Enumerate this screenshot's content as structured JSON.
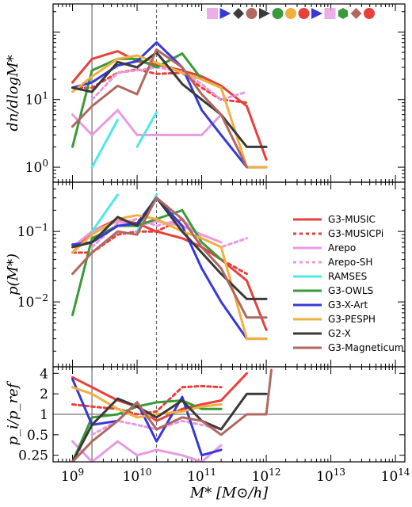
{
  "colors": {
    "G3-MUSIC": "#e8403c",
    "G3-MUSICPi": "#e8403c",
    "Arepo": "#e89ae0",
    "Arepo-SH": "#e89ae0",
    "RAMSES": "#4ee8e8",
    "G3-OWLS": "#3a9a3a",
    "G3-X-Art": "#3838d8",
    "G3-PESPH": "#f0b040",
    "G2-X": "#3a3a3a",
    "G3-Magneticum": "#b06860",
    "ref_lines": "#555555"
  },
  "chart_data": [
    {
      "type": "line",
      "panel": "top",
      "ylabel": "dn/dlogM*",
      "yscale": "log",
      "ylim": [
        0.6,
        260
      ],
      "xlim": [
        500000000.0,
        140000000000000.0
      ],
      "ytick_labels": [
        "10^0",
        "10^1"
      ],
      "reference_lines": {
        "solid_x": 2000000000.0,
        "dashed_x": 20000000000.0
      },
      "series": [
        {
          "name": "G3-MUSIC",
          "style": "solid",
          "x": [
            1000000000.0,
            2000000000.0,
            5000000000.0,
            10000000000.0,
            20000000000.0,
            50000000000.0,
            100000000000.0,
            200000000000.0,
            500000000000.0,
            1000000000000.0
          ],
          "y": [
            18,
            40,
            52,
            37,
            33,
            27,
            22,
            16,
            8,
            1.3
          ]
        },
        {
          "name": "G3-MUSICPi",
          "style": "dashed",
          "x": [
            1000000000.0,
            2000000000.0,
            5000000000.0,
            10000000000.0,
            20000000000.0,
            50000000000.0,
            100000000000.0,
            200000000000.0,
            500000000000.0
          ],
          "y": [
            15,
            15,
            25,
            28,
            24,
            25,
            15,
            10,
            9
          ]
        },
        {
          "name": "Arepo",
          "style": "solid",
          "x": [
            1000000000.0,
            2000000000.0,
            5000000000.0,
            10000000000.0,
            20000000000.0,
            50000000000.0,
            100000000000.0,
            200000000000.0
          ],
          "y": [
            6,
            3,
            7,
            3,
            3,
            3,
            3,
            6
          ]
        },
        {
          "name": "Arepo-SH",
          "style": "dashed",
          "x": [
            2000000000.0,
            5000000000.0,
            10000000000.0,
            20000000000.0,
            50000000000.0,
            100000000000.0,
            200000000000.0,
            500000000000.0
          ],
          "y": [
            10,
            25,
            27,
            30,
            26,
            17,
            10,
            13
          ]
        },
        {
          "name": "RAMSES",
          "style": "solid",
          "segments": [
            {
              "x": [
                2000000000.0,
                5000000000.0
              ],
              "y": [
                1,
                5
              ]
            },
            {
              "x": [
                10000000000.0,
                20000000000.0
              ],
              "y": [
                2,
                6.5
              ]
            }
          ]
        },
        {
          "name": "G3-OWLS",
          "style": "solid",
          "x": [
            1000000000.0,
            2000000000.0,
            5000000000.0,
            10000000000.0,
            20000000000.0,
            50000000000.0,
            100000000000.0,
            200000000000.0
          ],
          "y": [
            2,
            27,
            40,
            40,
            30,
            48,
            20,
            15
          ]
        },
        {
          "name": "G3-X-Art",
          "style": "solid",
          "x": [
            1000000000.0,
            2000000000.0,
            5000000000.0,
            10000000000.0,
            20000000000.0,
            50000000000.0,
            100000000000.0,
            200000000000.0,
            500000000000.0,
            1000000000000.0
          ],
          "y": [
            15,
            18,
            32,
            37,
            70,
            30,
            7,
            3,
            1,
            1
          ]
        },
        {
          "name": "G3-PESPH",
          "style": "solid",
          "x": [
            1000000000.0,
            2000000000.0,
            5000000000.0,
            10000000000.0,
            20000000000.0,
            50000000000.0,
            100000000000.0,
            200000000000.0,
            500000000000.0,
            1000000000000.0
          ],
          "y": [
            13,
            22,
            40,
            45,
            35,
            25,
            20,
            15,
            1,
            1
          ]
        },
        {
          "name": "G2-X",
          "style": "solid",
          "x": [
            1000000000.0,
            2000000000.0,
            5000000000.0,
            10000000000.0,
            20000000000.0,
            50000000000.0,
            100000000000.0,
            200000000000.0,
            500000000000.0,
            1000000000000.0
          ],
          "y": [
            15,
            13,
            36,
            30,
            50,
            17,
            10,
            6,
            2,
            2
          ]
        },
        {
          "name": "G3-Magneticum",
          "style": "solid",
          "x": [
            1000000000.0,
            2000000000.0,
            5000000000.0,
            10000000000.0,
            20000000000.0,
            50000000000.0,
            100000000000.0,
            200000000000.0,
            500000000000.0
          ],
          "y": [
            4,
            8,
            16,
            12,
            55,
            30,
            12,
            6,
            1
          ]
        }
      ]
    },
    {
      "type": "line",
      "panel": "middle",
      "ylabel": "p(M*)",
      "yscale": "log",
      "ylim": [
        0.0012,
        0.5
      ],
      "xlim": [
        500000000.0,
        140000000000000.0
      ],
      "ytick_labels": [
        "10^-2",
        "10^-1"
      ],
      "reference_lines": {
        "solid_x": 2000000000.0,
        "dashed_x": 20000000000.0
      },
      "series": [
        {
          "name": "G3-MUSIC",
          "style": "solid",
          "x": [
            1000000000.0,
            2000000000.0,
            5000000000.0,
            10000000000.0,
            20000000000.0,
            50000000000.0,
            100000000000.0,
            200000000000.0,
            500000000000.0,
            1000000000000.0
          ],
          "y": [
            0.05,
            0.1,
            0.15,
            0.13,
            0.1,
            0.08,
            0.06,
            0.04,
            0.02,
            0.004
          ]
        },
        {
          "name": "G3-MUSICPi",
          "style": "dashed",
          "x": [
            1000000000.0,
            2000000000.0,
            5000000000.0,
            10000000000.0,
            20000000000.0,
            50000000000.0,
            100000000000.0,
            200000000000.0,
            500000000000.0
          ],
          "y": [
            0.05,
            0.05,
            0.09,
            0.1,
            0.1,
            0.15,
            0.06,
            0.04,
            0.025
          ]
        },
        {
          "name": "Arepo",
          "style": "solid",
          "x": [
            1000000000.0,
            2000000000.0,
            5000000000.0,
            10000000000.0,
            20000000000.0,
            50000000000.0,
            100000000000.0,
            200000000000.0
          ],
          "y": [
            0.06,
            0.1,
            0.14,
            0.12,
            0.14,
            0.12,
            0.09,
            0.07
          ]
        },
        {
          "name": "Arepo-SH",
          "style": "dashed",
          "x": [
            2000000000.0,
            5000000000.0,
            10000000000.0,
            20000000000.0,
            50000000000.0,
            100000000000.0,
            200000000000.0,
            500000000000.0
          ],
          "y": [
            0.06,
            0.13,
            0.15,
            0.12,
            0.15,
            0.08,
            0.06,
            0.08
          ]
        },
        {
          "name": "RAMSES",
          "style": "solid",
          "segments": [
            {
              "x": [
                2000000000.0,
                5000000000.0
              ],
              "y": [
                0.1,
                0.33
              ]
            },
            {
              "x": [
                10000000000.0,
                20000000000.0
              ],
              "y": [
                0.1,
                0.33
              ]
            }
          ]
        },
        {
          "name": "G3-OWLS",
          "style": "solid",
          "x": [
            1000000000.0,
            2000000000.0,
            5000000000.0,
            10000000000.0,
            20000000000.0,
            50000000000.0,
            100000000000.0,
            200000000000.0
          ],
          "y": [
            0.0065,
            0.08,
            0.12,
            0.12,
            0.15,
            0.2,
            0.07,
            0.04
          ]
        },
        {
          "name": "G3-X-Art",
          "style": "solid",
          "x": [
            1000000000.0,
            2000000000.0,
            5000000000.0,
            10000000000.0,
            20000000000.0,
            50000000000.0,
            100000000000.0,
            200000000000.0,
            500000000000.0,
            1000000000000.0
          ],
          "y": [
            0.065,
            0.07,
            0.12,
            0.13,
            0.3,
            0.12,
            0.03,
            0.01,
            0.003,
            0.003
          ]
        },
        {
          "name": "G3-PESPH",
          "style": "solid",
          "x": [
            1000000000.0,
            2000000000.0,
            5000000000.0,
            10000000000.0,
            20000000000.0,
            50000000000.0,
            100000000000.0,
            200000000000.0,
            500000000000.0,
            1000000000000.0
          ],
          "y": [
            0.05,
            0.09,
            0.15,
            0.17,
            0.15,
            0.1,
            0.08,
            0.06,
            0.003,
            0.003
          ]
        },
        {
          "name": "G2-X",
          "style": "solid",
          "x": [
            1000000000.0,
            2000000000.0,
            5000000000.0,
            10000000000.0,
            20000000000.0,
            50000000000.0,
            100000000000.0,
            200000000000.0,
            500000000000.0,
            1000000000000.0
          ],
          "y": [
            0.06,
            0.07,
            0.16,
            0.12,
            0.3,
            0.1,
            0.05,
            0.025,
            0.011,
            0.011
          ]
        },
        {
          "name": "G3-Magneticum",
          "style": "solid",
          "x": [
            1000000000.0,
            2000000000.0,
            5000000000.0,
            10000000000.0,
            20000000000.0,
            50000000000.0,
            100000000000.0,
            200000000000.0,
            500000000000.0,
            1000000000000.0
          ],
          "y": [
            0.025,
            0.05,
            0.1,
            0.09,
            0.3,
            0.15,
            0.06,
            0.03,
            0.006,
            0.006
          ]
        }
      ]
    },
    {
      "type": "line",
      "panel": "bottom",
      "ylabel": "p_i/p_ref",
      "yscale": "log",
      "ylim": [
        0.2,
        5
      ],
      "xlim": [
        500000000.0,
        140000000000000.0
      ],
      "ytick_labels": [
        "0.25",
        "0.5",
        "1",
        "2",
        "4"
      ],
      "xlabel": "M* [M⊙/h]",
      "xtick_labels": [
        "10^9",
        "10^10",
        "10^11",
        "10^12",
        "10^13",
        "10^14"
      ],
      "reference_lines": {
        "solid_x": 2000000000.0,
        "dashed_x": 20000000000.0,
        "solid_y": 1
      },
      "series": [
        {
          "name": "G3-MUSIC",
          "style": "solid",
          "x": [
            1000000000.0,
            2000000000.0,
            5000000000.0,
            10000000000.0,
            20000000000.0,
            50000000000.0,
            100000000000.0,
            200000000000.0,
            500000000000.0
          ],
          "y": [
            3.5,
            2.5,
            1.6,
            1.3,
            0.8,
            1.2,
            1.4,
            1.6,
            4
          ]
        },
        {
          "name": "G3-MUSICPi",
          "style": "dashed",
          "x": [
            1000000000.0,
            2000000000.0,
            5000000000.0,
            10000000000.0,
            20000000000.0,
            50000000000.0,
            100000000000.0,
            200000000000.0
          ],
          "y": [
            1.4,
            1.3,
            1.2,
            1.0,
            1.1,
            2.5,
            2.6,
            2.5
          ]
        },
        {
          "name": "Arepo",
          "style": "solid",
          "x": [
            1000000000.0,
            2000000000.0,
            5000000000.0,
            10000000000.0,
            20000000000.0,
            50000000000.0,
            100000000000.0,
            200000000000.0
          ],
          "y": [
            0.4,
            0.2,
            0.4,
            0.25,
            0.3,
            0.25,
            0.2,
            0.35
          ]
        },
        {
          "name": "Arepo-SH",
          "style": "dashed",
          "x": [
            2000000000.0,
            5000000000.0,
            10000000000.0,
            20000000000.0,
            50000000000.0,
            100000000000.0,
            200000000000.0
          ],
          "y": [
            0.5,
            0.8,
            0.7,
            0.6,
            0.8,
            0.7,
            0.6
          ]
        },
        {
          "name": "G3-OWLS",
          "style": "solid",
          "x": [
            1000000000.0,
            2000000000.0,
            5000000000.0,
            10000000000.0,
            20000000000.0,
            50000000000.0,
            100000000000.0,
            200000000000.0
          ],
          "y": [
            0.2,
            0.9,
            1.0,
            1.3,
            1.5,
            1.6,
            1.2,
            1.2
          ]
        },
        {
          "name": "G3-X-Art",
          "style": "solid",
          "x": [
            1000000000.0,
            2000000000.0,
            5000000000.0,
            10000000000.0,
            20000000000.0,
            50000000000.0,
            100000000000.0,
            200000000000.0
          ],
          "y": [
            3.3,
            0.7,
            0.8,
            1.5,
            0.4,
            1.8,
            0.25,
            0.3
          ]
        },
        {
          "name": "G3-PESPH",
          "style": "solid",
          "x": [
            1000000000.0,
            2000000000.0,
            5000000000.0,
            10000000000.0,
            20000000000.0,
            50000000000.0,
            100000000000.0,
            200000000000.0
          ],
          "y": [
            2.5,
            2.0,
            1.2,
            0.9,
            1.0,
            1.1,
            1.3,
            1.4
          ]
        },
        {
          "name": "G2-X",
          "style": "solid",
          "x": [
            1000000000.0,
            2000000000.0,
            5000000000.0,
            10000000000.0,
            20000000000.0,
            50000000000.0,
            100000000000.0,
            200000000000.0,
            500000000000.0,
            1000000000000.0
          ],
          "y": [
            0.2,
            0.7,
            1.7,
            1.3,
            0.9,
            1.6,
            0.8,
            0.6,
            2,
            2
          ]
        },
        {
          "name": "G3-Magneticum",
          "style": "solid",
          "x": [
            1000000000.0,
            2000000000.0,
            5000000000.0,
            10000000000.0,
            20000000000.0,
            50000000000.0,
            100000000000.0,
            200000000000.0,
            500000000000.0,
            1000000000000.0,
            1200000000000.0
          ],
          "y": [
            0.2,
            0.4,
            0.8,
            1.5,
            0.6,
            0.9,
            0.8,
            0.5,
            1.0,
            1.0,
            4.5
          ]
        }
      ]
    }
  ],
  "legend": {
    "placement": "center-right of middle panel",
    "entries": [
      {
        "name": "G3-MUSIC",
        "style": "solid"
      },
      {
        "name": "G3-MUSICPi",
        "style": "dashed"
      },
      {
        "name": "Arepo",
        "style": "solid"
      },
      {
        "name": "Arepo-SH",
        "style": "dashed"
      },
      {
        "name": "RAMSES",
        "style": "solid"
      },
      {
        "name": "G3-OWLS",
        "style": "solid"
      },
      {
        "name": "G3-X-Art",
        "style": "solid"
      },
      {
        "name": "G3-PESPH",
        "style": "solid"
      },
      {
        "name": "G2-X",
        "style": "solid"
      },
      {
        "name": "G3-Magneticum",
        "style": "solid"
      }
    ]
  },
  "markers_row": {
    "placement": "top-right of top panel",
    "items": [
      {
        "shape": "square",
        "color": "#e89ae0"
      },
      {
        "shape": "triangle-right",
        "color": "#3838d8"
      },
      {
        "shape": "diamond",
        "color": "#3a3a3a"
      },
      {
        "shape": "circle",
        "color": "#b06860"
      },
      {
        "shape": "triangle-right",
        "color": "#3a3a3a"
      },
      {
        "shape": "circle",
        "color": "#3a9a3a"
      },
      {
        "shape": "circle",
        "color": "#f0b040"
      },
      {
        "shape": "circle",
        "color": "#e8403c"
      },
      {
        "shape": "triangle-right",
        "color": "#3838d8"
      },
      {
        "shape": "square",
        "color": "#e89ae0"
      },
      {
        "shape": "hexagon",
        "color": "#3a9a3a"
      },
      {
        "shape": "diamond",
        "color": "#b06860"
      },
      {
        "shape": "circle",
        "color": "#e8403c"
      }
    ]
  }
}
